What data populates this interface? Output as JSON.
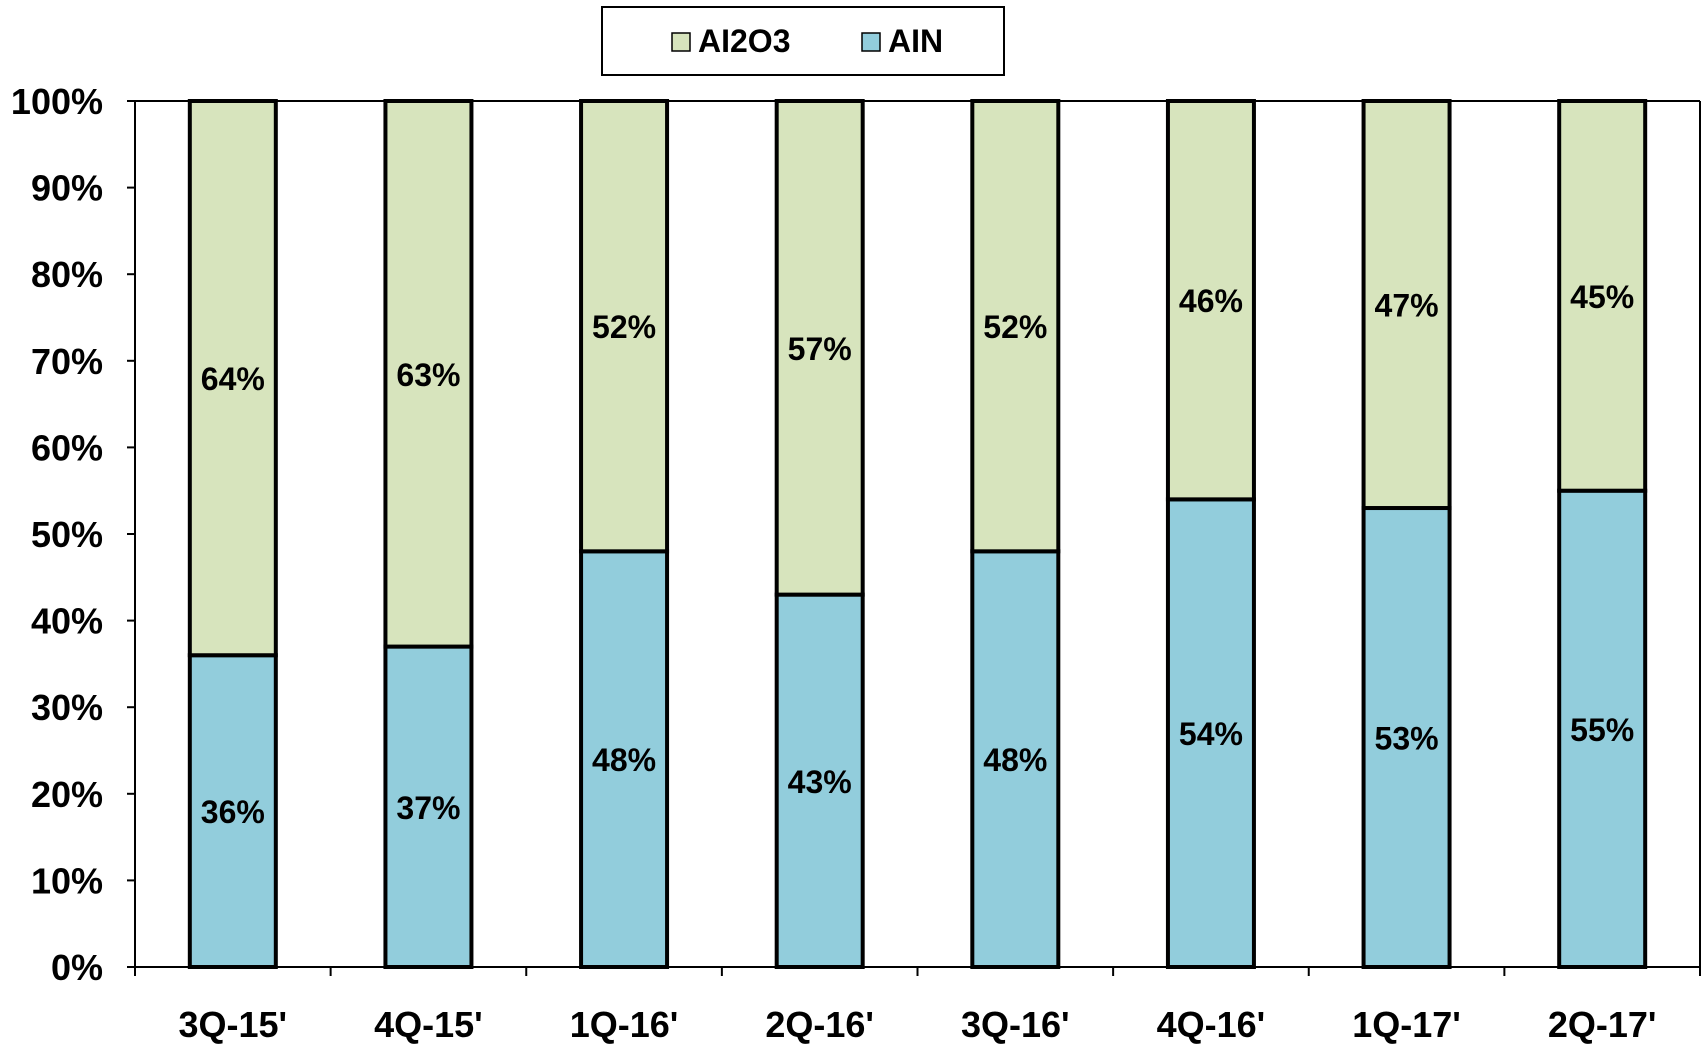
{
  "chart_data": {
    "type": "bar",
    "stacked": true,
    "categories": [
      "3Q-15'",
      "4Q-15'",
      "1Q-16'",
      "2Q-16'",
      "3Q-16'",
      "4Q-16'",
      "1Q-17'",
      "2Q-17'"
    ],
    "series": [
      {
        "name": "AIN",
        "color": "#92cddc",
        "values": [
          36,
          37,
          48,
          43,
          48,
          54,
          53,
          55
        ],
        "labels": [
          "36%",
          "37%",
          "48%",
          "43%",
          "48%",
          "54%",
          "53%",
          "55%"
        ]
      },
      {
        "name": "AI2O3",
        "color": "#d7e4bd",
        "values": [
          64,
          63,
          52,
          57,
          52,
          46,
          47,
          45
        ],
        "labels": [
          "64%",
          "63%",
          "52%",
          "57%",
          "52%",
          "46%",
          "47%",
          "45%"
        ]
      }
    ],
    "legend_order": [
      1,
      0
    ],
    "legend_position": "top-center",
    "y_ticks": [
      "0%",
      "10%",
      "20%",
      "30%",
      "40%",
      "50%",
      "60%",
      "70%",
      "80%",
      "90%",
      "100%"
    ],
    "ylim": [
      0,
      100
    ],
    "title": "",
    "xlabel": "",
    "ylabel": "",
    "grid": false
  }
}
